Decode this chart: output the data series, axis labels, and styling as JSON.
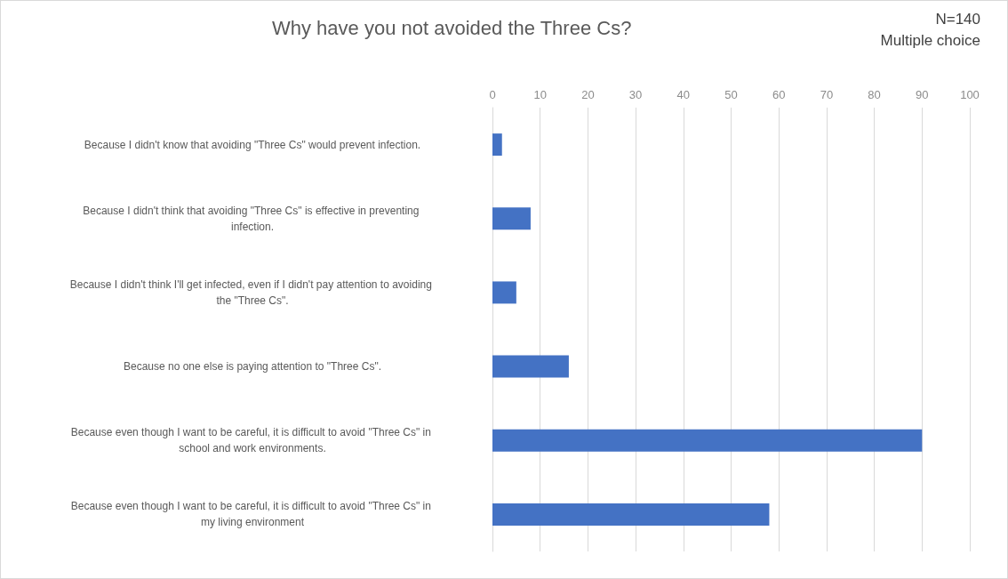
{
  "chart_data": {
    "type": "bar",
    "orientation": "horizontal",
    "title": "Why have you not avoided the Three Cs?",
    "annotations": [
      "N=140",
      "Multiple choice"
    ],
    "categories": [
      "Because I didn't know that avoiding \"Three Cs\" would prevent infection.",
      "Because I didn't think that avoiding \"Three Cs\" is effective in preventing infection.",
      "Because I didn't think I'll get infected, even if I didn't pay attention to avoiding the \"Three Cs\".",
      "Because no one else is paying attention to \"Three Cs\".",
      "Because even though I want to be careful, it is difficult to avoid \"Three Cs\" in school and work environments.",
      "Because even though I want to be careful, it is difficult to avoid \"Three Cs\" in my living environment"
    ],
    "values": [
      2,
      8,
      5,
      16,
      90,
      58
    ],
    "color": "#4472c4",
    "xlim": [
      0,
      100
    ],
    "xticks": [
      0,
      10,
      20,
      30,
      40,
      50,
      60,
      70,
      80,
      90,
      100
    ],
    "grid": "x"
  }
}
